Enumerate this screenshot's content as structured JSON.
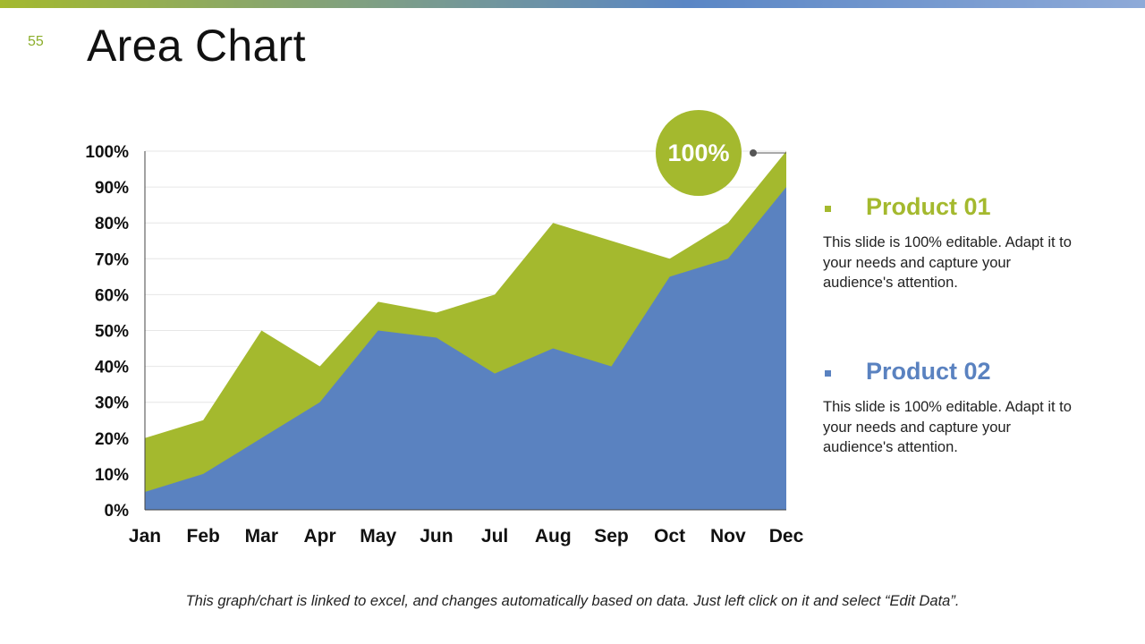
{
  "slide": {
    "number": "55",
    "title": "Area Chart",
    "footer_note": "This graph/chart is linked to excel, and changes automatically based on data. Just left click on it and select “Edit Data”."
  },
  "colors": {
    "product01": "#a4b92e",
    "product02": "#5a82c0",
    "gridline": "#e6e6e6",
    "axis": "#444444"
  },
  "callout": {
    "label": "100%"
  },
  "legend": [
    {
      "title": "Product 01",
      "description": "This slide is 100% editable. Adapt it to your needs and capture your audience's attention."
    },
    {
      "title": "Product 02",
      "description": "This slide is 100% editable. Adapt it to your needs and capture your audience's attention."
    }
  ],
  "chart_data": {
    "type": "area",
    "title": "Area Chart",
    "xlabel": "",
    "ylabel": "",
    "categories": [
      "Jan",
      "Feb",
      "Mar",
      "Apr",
      "May",
      "Jun",
      "Jul",
      "Aug",
      "Sep",
      "Oct",
      "Nov",
      "Dec"
    ],
    "ylim": [
      0,
      100
    ],
    "yticks": [
      "0%",
      "10%",
      "20%",
      "30%",
      "40%",
      "50%",
      "60%",
      "70%",
      "80%",
      "90%",
      "100%"
    ],
    "series": [
      {
        "name": "Product 01",
        "values": [
          20,
          25,
          50,
          40,
          58,
          55,
          60,
          80,
          75,
          70,
          80,
          100
        ]
      },
      {
        "name": "Product 02",
        "values": [
          5,
          10,
          20,
          30,
          50,
          48,
          38,
          45,
          40,
          65,
          70,
          90
        ]
      }
    ],
    "grid": true,
    "legend_position": "right"
  }
}
